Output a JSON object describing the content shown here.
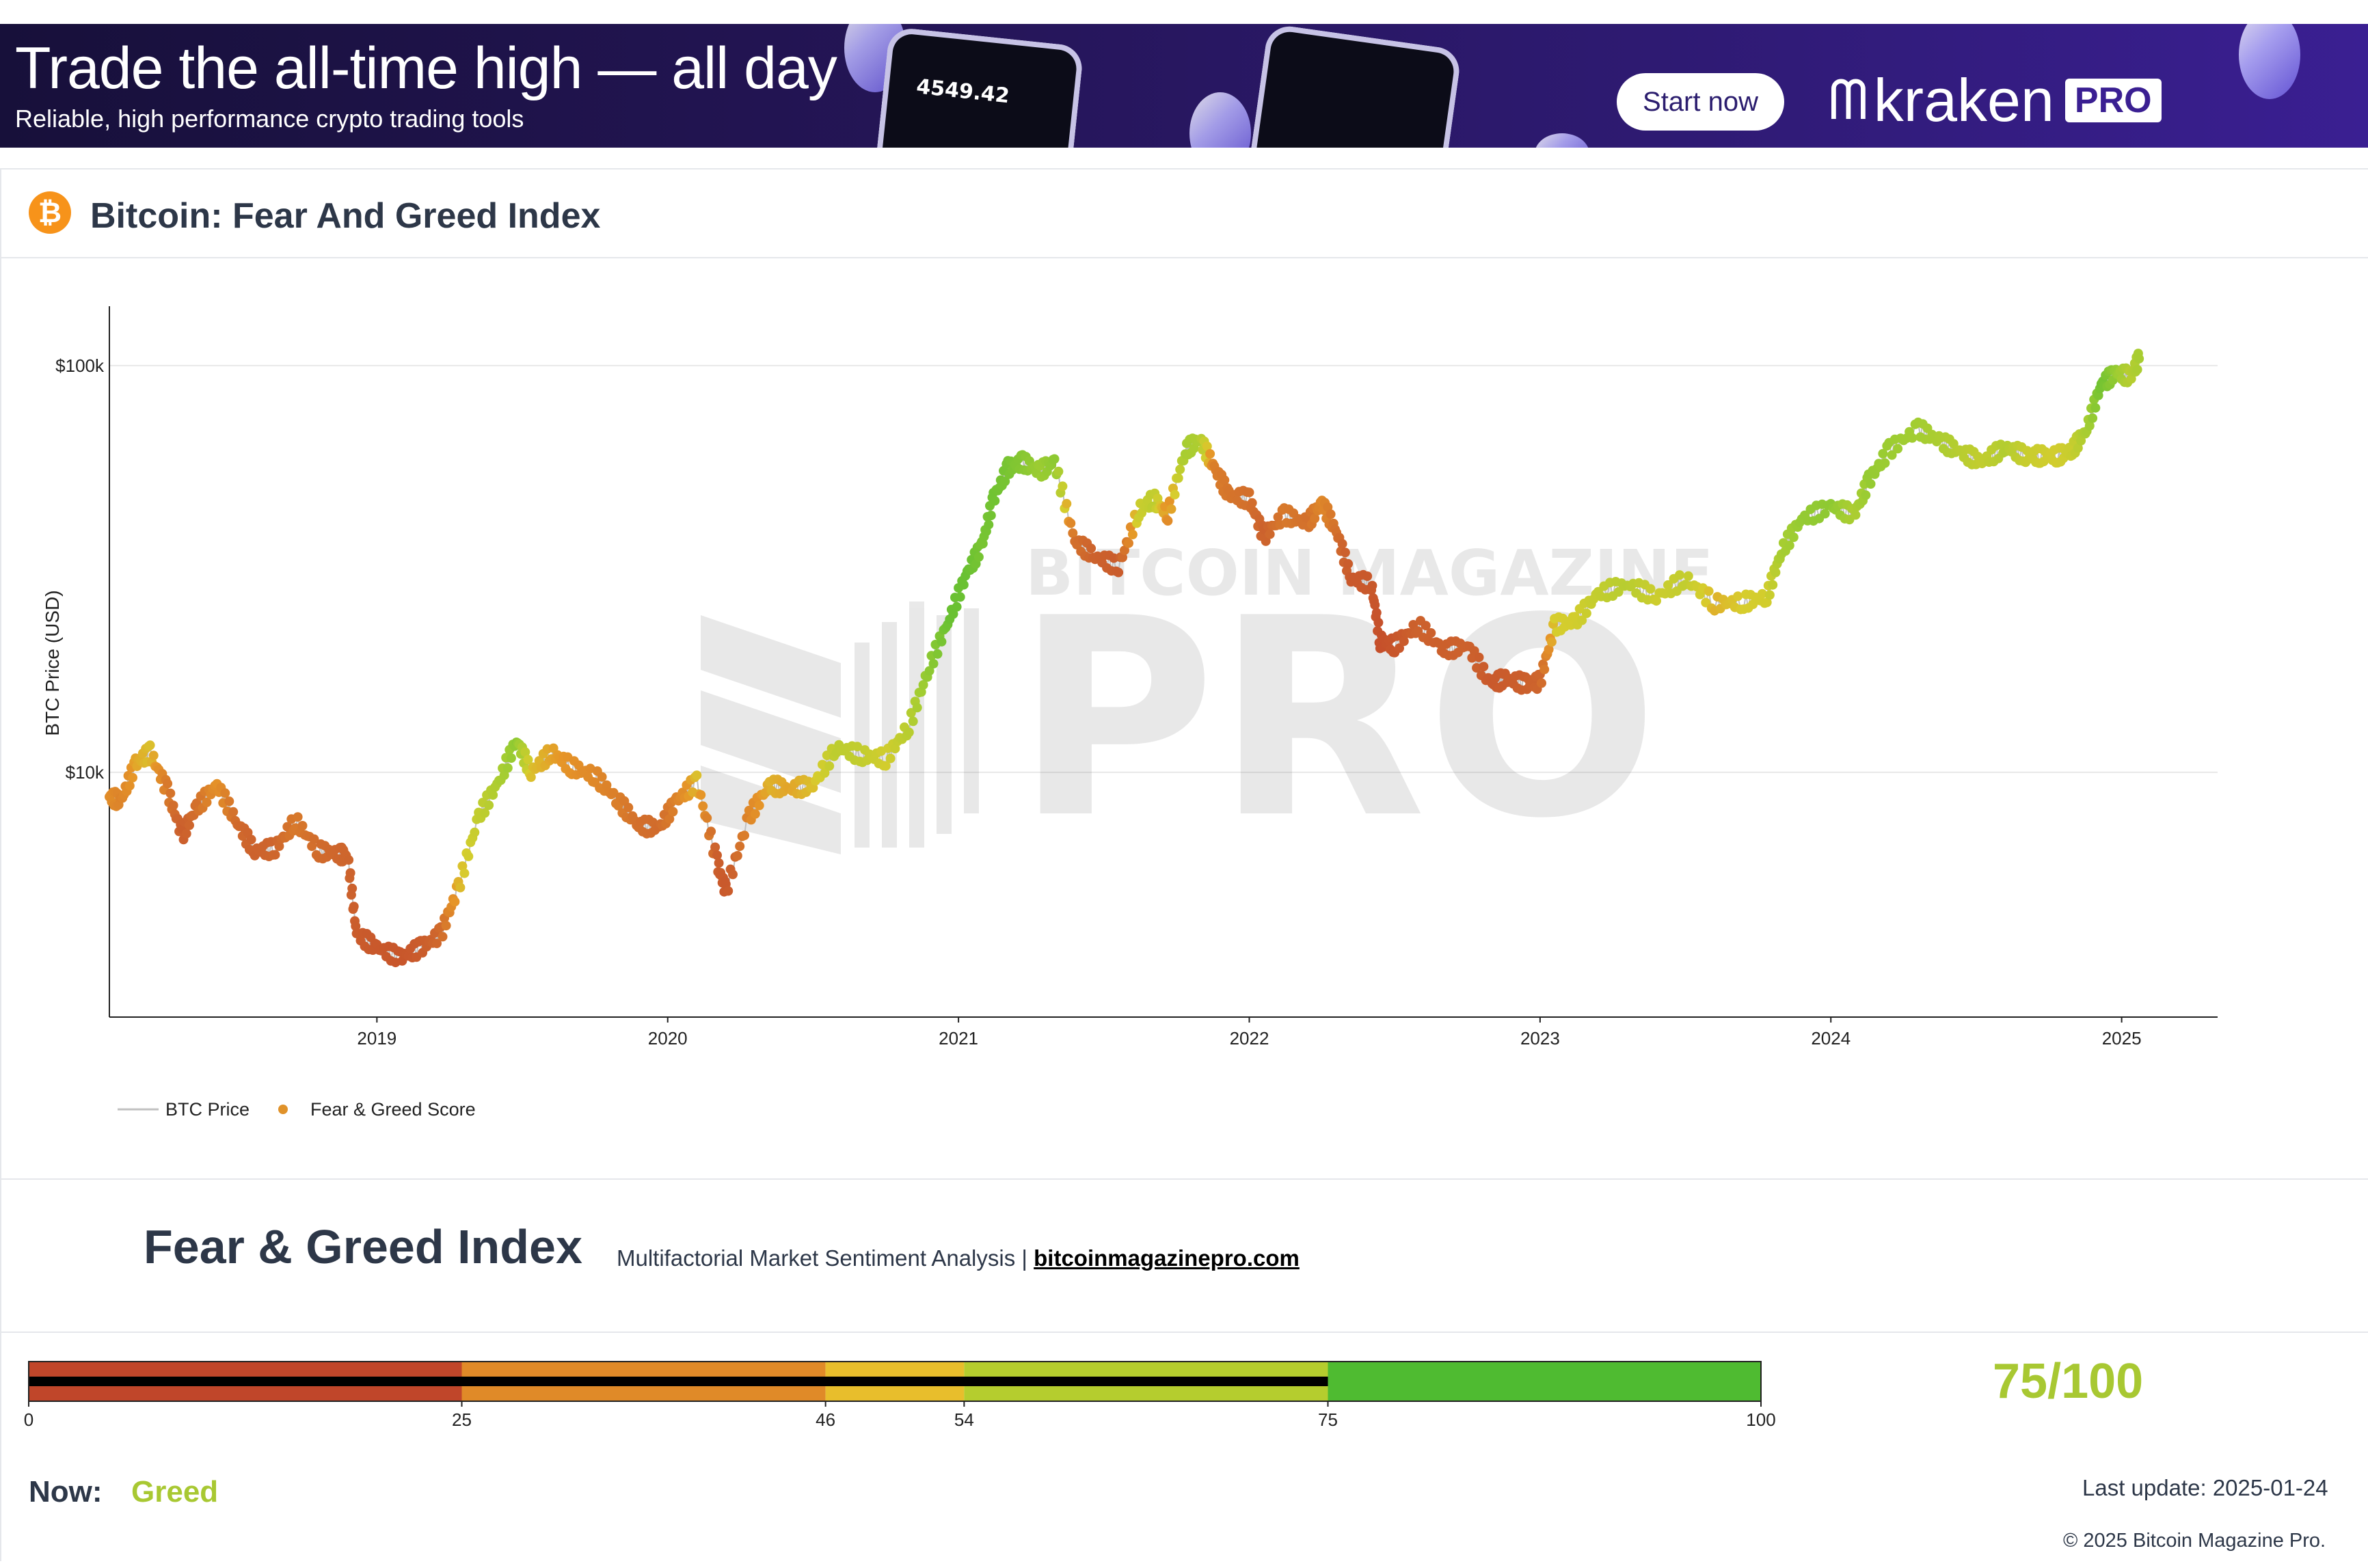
{
  "banner": {
    "headline": "Trade the all-time high — all day",
    "subline": "Reliable, high performance crypto trading tools",
    "phone_value": "4549.42",
    "cta": "Start now",
    "brand": "kraken",
    "brand_badge": "PRO"
  },
  "page": {
    "title": "Bitcoin: Fear And Greed Index",
    "watermark_top": "BITCOIN MAGAZINE",
    "watermark_main": "PRO"
  },
  "chart_data": {
    "type": "scatter",
    "ylabel": "BTC Price (USD)",
    "xlabel": "",
    "yscale": "log",
    "ylim": [
      2500,
      140000
    ],
    "y_ticks": [
      {
        "value": 10000,
        "label": "$10k"
      },
      {
        "value": 100000,
        "label": "$100k"
      }
    ],
    "x_ticks": [
      "2019",
      "2020",
      "2021",
      "2022",
      "2023",
      "2024",
      "2025"
    ],
    "xlim": [
      2018.08,
      2025.33
    ],
    "grid": true,
    "legend": {
      "position": "bottom-left",
      "entries": [
        {
          "name": "BTC Price",
          "kind": "line",
          "color": "#c0c0c0"
        },
        {
          "name": "Fear & Greed Score",
          "kind": "marker",
          "color": "#e0922a"
        }
      ]
    },
    "series": [
      {
        "name": "BTC Price",
        "x": [
          2018.08,
          2018.12,
          2018.17,
          2018.22,
          2018.28,
          2018.33,
          2018.38,
          2018.45,
          2018.52,
          2018.58,
          2018.65,
          2018.72,
          2018.8,
          2018.87,
          2018.9,
          2018.93,
          2019.0,
          2019.08,
          2019.15,
          2019.22,
          2019.28,
          2019.35,
          2019.42,
          2019.48,
          2019.53,
          2019.6,
          2019.67,
          2019.75,
          2019.83,
          2019.9,
          2019.97,
          2020.03,
          2020.1,
          2020.17,
          2020.2,
          2020.28,
          2020.35,
          2020.42,
          2020.5,
          2020.58,
          2020.67,
          2020.75,
          2020.83,
          2020.9,
          2020.97,
          2021.03,
          2021.08,
          2021.12,
          2021.17,
          2021.22,
          2021.28,
          2021.33,
          2021.4,
          2021.47,
          2021.55,
          2021.62,
          2021.67,
          2021.72,
          2021.78,
          2021.83,
          2021.88,
          2021.93,
          2022.0,
          2022.05,
          2022.12,
          2022.2,
          2022.25,
          2022.3,
          2022.35,
          2022.42,
          2022.45,
          2022.5,
          2022.58,
          2022.67,
          2022.75,
          2022.83,
          2022.88,
          2022.95,
          2023.0,
          2023.05,
          2023.12,
          2023.2,
          2023.3,
          2023.4,
          2023.5,
          2023.6,
          2023.7,
          2023.78,
          2023.83,
          2023.9,
          2024.0,
          2024.08,
          2024.13,
          2024.2,
          2024.3,
          2024.38,
          2024.45,
          2024.52,
          2024.6,
          2024.67,
          2024.72,
          2024.78,
          2024.83,
          2024.88,
          2024.93,
          2024.98,
          2025.03,
          2025.06
        ],
        "y": [
          8700,
          8500,
          10500,
          11200,
          9000,
          7000,
          8200,
          9300,
          7500,
          6400,
          6500,
          7600,
          6400,
          6300,
          6200,
          4000,
          3700,
          3500,
          3700,
          4000,
          5200,
          7800,
          9500,
          12000,
          10000,
          11200,
          10300,
          9800,
          8500,
          7400,
          7300,
          8500,
          9500,
          6000,
          5100,
          7800,
          9300,
          9100,
          9300,
          11500,
          11000,
          10800,
          13000,
          18200,
          24000,
          31000,
          36000,
          47000,
          56000,
          58000,
          55000,
          58000,
          37000,
          34000,
          32000,
          44000,
          47000,
          43000,
          62000,
          66000,
          56000,
          48000,
          47000,
          38000,
          43000,
          41000,
          46000,
          39000,
          30000,
          29000,
          21000,
          20500,
          23000,
          20000,
          20500,
          16500,
          17000,
          16500,
          16700,
          23000,
          23500,
          27500,
          29000,
          27000,
          30000,
          26000,
          26200,
          27000,
          35000,
          42000,
          45000,
          43000,
          52000,
          62000,
          70000,
          65000,
          61000,
          58000,
          63000,
          60000,
          60000,
          60000,
          62000,
          70000,
          90000,
          96000,
          94000,
          104000
        ],
        "color": "#c0c0c0"
      },
      {
        "name": "Fear & Greed Score",
        "marker": "dot",
        "note": "points share the BTC Price x/y; color encodes the Fear & Greed score (0–100)",
        "score": [
          42,
          38,
          48,
          52,
          34,
          22,
          30,
          44,
          28,
          24,
          26,
          34,
          28,
          26,
          26,
          20,
          18,
          16,
          20,
          28,
          50,
          62,
          70,
          80,
          52,
          48,
          44,
          40,
          36,
          30,
          28,
          38,
          52,
          22,
          18,
          40,
          50,
          48,
          52,
          64,
          62,
          56,
          66,
          80,
          90,
          90,
          86,
          88,
          86,
          82,
          76,
          80,
          30,
          24,
          20,
          58,
          64,
          42,
          72,
          70,
          36,
          32,
          30,
          24,
          34,
          30,
          40,
          30,
          18,
          18,
          12,
          16,
          24,
          22,
          24,
          18,
          20,
          22,
          26,
          54,
          56,
          62,
          66,
          58,
          62,
          50,
          54,
          56,
          72,
          78,
          80,
          70,
          78,
          76,
          74,
          70,
          66,
          62,
          68,
          60,
          58,
          56,
          60,
          72,
          88,
          78,
          66,
          72
        ]
      }
    ]
  },
  "gauge": {
    "title": "Fear & Greed Index",
    "subtitle": "Multifactorial Market Sentiment Analysis |",
    "link": "bitcoinmagazinepro.com",
    "boundaries": [
      0,
      25,
      46,
      54,
      75,
      100
    ],
    "zone_colors": [
      "#c0462a",
      "#e08a28",
      "#e8be2c",
      "#b5cd2e",
      "#4fbb31"
    ],
    "value": 75,
    "score_text": "75/100",
    "now_label": "Now:",
    "now_value": "Greed",
    "last_update": "Last update: 2025-01-24",
    "copyright": "© 2025 Bitcoin Magazine Pro."
  }
}
